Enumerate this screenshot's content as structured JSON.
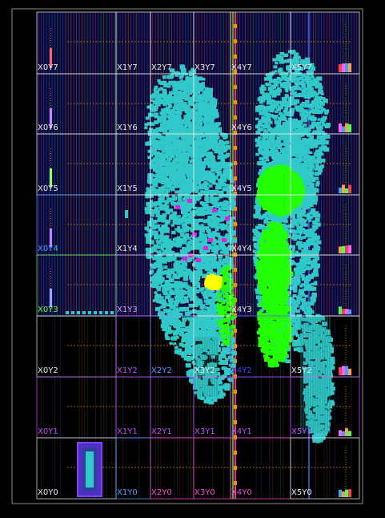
{
  "view": {
    "title": "",
    "palette": {
      "background": "#000000",
      "device_frame": "#8a8a8a",
      "placement_cyan": "#30c8c8",
      "placement_green": "#22ff00",
      "placement_magenta": "#e020e0",
      "placement_yellow": "#ffff00",
      "routing_bg": "#08083a",
      "io_block": "#8040ff"
    }
  },
  "clock_regions": [
    {
      "name": "X0Y7",
      "color": "#e8e8e8"
    },
    {
      "name": "X1Y7",
      "color": "#e8e8e8"
    },
    {
      "name": "X2Y7",
      "color": "#e8e8e8"
    },
    {
      "name": "X3Y7",
      "color": "#e8e8e8"
    },
    {
      "name": "X4Y7",
      "color": "#e8e8e8"
    },
    {
      "name": "X5Y7",
      "color": "#e8e8e8"
    },
    {
      "name": "X0Y6",
      "color": "#e8e8e8"
    },
    {
      "name": "X1Y6",
      "color": "#e8e8e8"
    },
    {
      "name": "X4Y6",
      "color": "#e8e8e8"
    },
    {
      "name": "X0Y5",
      "color": "#e8e8e8"
    },
    {
      "name": "X1Y5",
      "color": "#e8e8e8"
    },
    {
      "name": "X4Y5",
      "color": "#e8e8e8"
    },
    {
      "name": "X0Y4",
      "color": "#4aa4ff"
    },
    {
      "name": "X1Y4",
      "color": "#e8e8e8"
    },
    {
      "name": "X4Y4",
      "color": "#e8e8e8"
    },
    {
      "name": "X0Y3",
      "color": "#6cff3c"
    },
    {
      "name": "X1Y3",
      "color": "#d0a0ff"
    },
    {
      "name": "X4Y3",
      "color": "#e8e8e8"
    },
    {
      "name": "X0Y2",
      "color": "#e8e8e8"
    },
    {
      "name": "X1Y2",
      "color": "#c050ff"
    },
    {
      "name": "X2Y2",
      "color": "#6090ff"
    },
    {
      "name": "X3Y2",
      "color": "#e8e8e8"
    },
    {
      "name": "X4Y2",
      "color": "#4040ff"
    },
    {
      "name": "X5Y2",
      "color": "#e8e8e8"
    },
    {
      "name": "X0Y1",
      "color": "#c050ff"
    },
    {
      "name": "X1Y1",
      "color": "#c050ff"
    },
    {
      "name": "X2Y1",
      "color": "#c050ff"
    },
    {
      "name": "X3Y1",
      "color": "#c050ff"
    },
    {
      "name": "X4Y1",
      "color": "#c050ff"
    },
    {
      "name": "X5Y1",
      "color": "#c050ff"
    },
    {
      "name": "X0Y0",
      "color": "#e8e8e8"
    },
    {
      "name": "X1Y0",
      "color": "#4aa4ff"
    },
    {
      "name": "X2Y0",
      "color": "#ff4ad0"
    },
    {
      "name": "X3Y0",
      "color": "#ff4ad0"
    },
    {
      "name": "X4Y0",
      "color": "#ff4ad0"
    },
    {
      "name": "X5Y0",
      "color": "#e8e8e8"
    }
  ]
}
